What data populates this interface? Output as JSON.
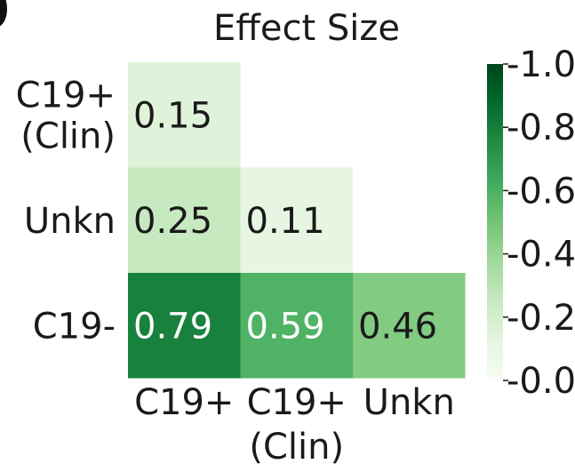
{
  "chart_data": {
    "type": "heatmap",
    "title": "Effect Size",
    "x_categories": [
      "C19+",
      "C19+\n(Clin)",
      "Unkn"
    ],
    "y_categories": [
      "C19+\n(Clin)",
      "Unkn",
      "C19-"
    ],
    "cells": [
      {
        "row": 0,
        "col": 0,
        "value": 0.15
      },
      {
        "row": 1,
        "col": 0,
        "value": 0.25
      },
      {
        "row": 1,
        "col": 1,
        "value": 0.11
      },
      {
        "row": 2,
        "col": 0,
        "value": 0.79
      },
      {
        "row": 2,
        "col": 1,
        "value": 0.59
      },
      {
        "row": 2,
        "col": 2,
        "value": 0.46
      }
    ],
    "colorbar": {
      "min": 0.0,
      "max": 1.0,
      "ticks": [
        "0.0",
        "0.2",
        "0.4",
        "0.6",
        "0.8",
        "1.0"
      ],
      "colormap": "Greens",
      "color_low": "#f7fcf5",
      "color_high": "#00441b"
    }
  }
}
